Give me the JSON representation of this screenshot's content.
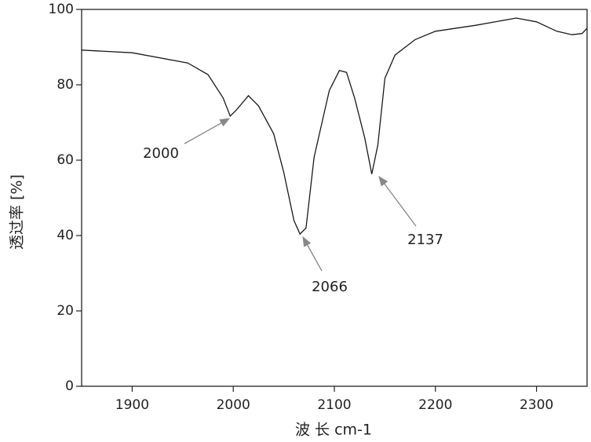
{
  "chart_data": {
    "type": "line",
    "xlabel": "波 长 cm-1",
    "ylabel": "透过率 [%]",
    "x": [
      1850,
      1900,
      1955,
      1975,
      1990,
      1997,
      2003,
      2015,
      2025,
      2040,
      2050,
      2060,
      2066,
      2072,
      2080,
      2088,
      2095,
      2105,
      2112,
      2120,
      2130,
      2137,
      2143,
      2150,
      2160,
      2180,
      2200,
      2240,
      2280,
      2300,
      2320,
      2335,
      2345,
      2350
    ],
    "values": [
      89.2,
      88.5,
      85.8,
      82.7,
      76.5,
      71.7,
      73.3,
      77.1,
      74.4,
      67,
      56.7,
      44,
      40.4,
      42,
      60.8,
      70.2,
      78.5,
      83.8,
      83.3,
      76.5,
      66,
      56.3,
      64,
      81.7,
      87.9,
      92,
      94.2,
      95.8,
      97.7,
      96.7,
      94.2,
      93.3,
      93.6,
      95
    ],
    "color": "#1a1a1a",
    "xlim": [
      1850,
      2350
    ],
    "xticks": [
      1900,
      2000,
      2100,
      2200,
      2300
    ],
    "ylim": [
      0,
      100
    ],
    "yticks": [
      0,
      20,
      40,
      60,
      80,
      100
    ],
    "annotations": [
      {
        "text": "2000"
      },
      {
        "text": "2066"
      },
      {
        "text": "2137"
      }
    ]
  }
}
